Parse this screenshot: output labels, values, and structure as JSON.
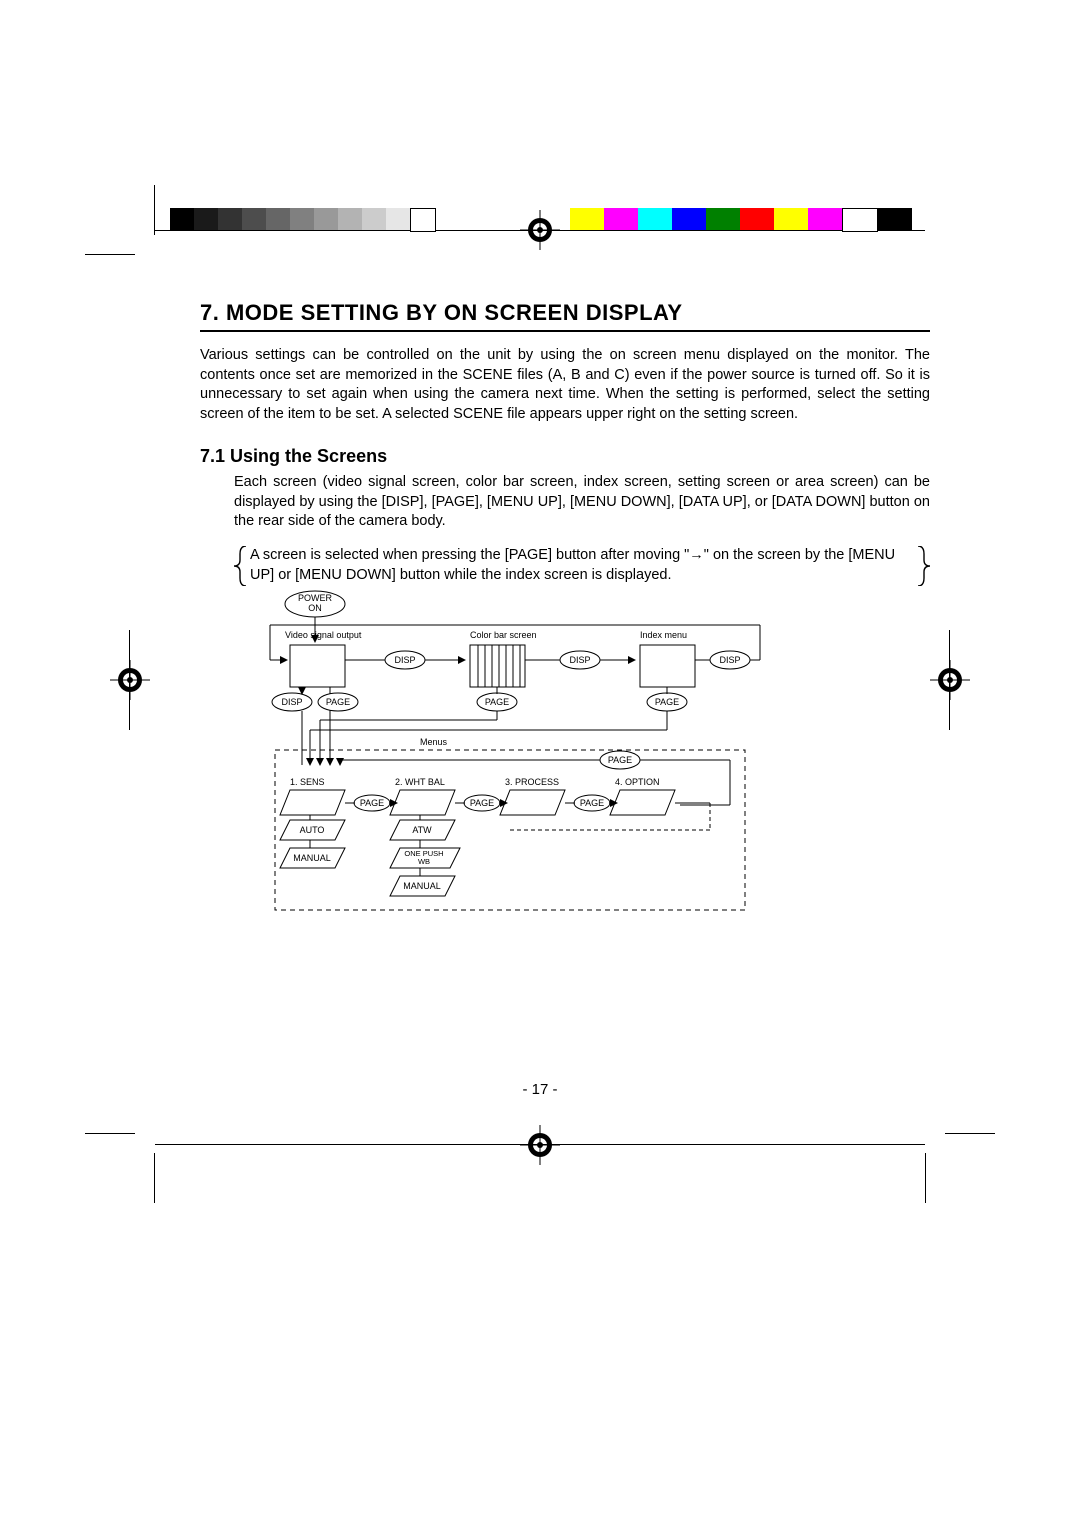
{
  "page_number": "- 17 -",
  "section": {
    "number": "7.",
    "title": "MODE SETTING BY ON SCREEN DISPLAY",
    "body": "Various settings can be controlled on the unit by using the on screen menu displayed on the monitor. The contents once set are memorized in the SCENE files (A, B and C) even if the power source is turned off. So it is unnecessary to set again when using the camera next time. When the setting is performed, select the setting screen of the item to be set. A selected SCENE file appears upper right on the setting screen."
  },
  "subsection": {
    "number": "7.1",
    "title": "Using the Screens",
    "body": "Each screen (video signal screen, color bar screen, index screen, setting screen or area screen) can be displayed by using the [DISP], [PAGE], [MENU UP], [MENU DOWN], [DATA UP], or [DATA DOWN] button on the rear side of the camera body.",
    "note": "A screen is selected when pressing the [PAGE] button after moving \"→\" on the screen by the [MENU UP] or [MENU DOWN] button while the index screen is displayed."
  },
  "diagram": {
    "labels": {
      "power_on": "POWER\nON",
      "video_signal": "Video signal output",
      "color_bar": "Color bar screen",
      "index_menu": "Index menu",
      "menus": "Menus",
      "disp": "DISP",
      "page": "PAGE",
      "sens": "1. SENS",
      "wht_bal": "2. WHT BAL",
      "process": "3. PROCESS",
      "option": "4. OPTION",
      "auto": "AUTO",
      "manual": "MANUAL",
      "atw": "ATW",
      "one_push": "ONE PUSH\nWB"
    },
    "colors": {
      "line": "#000000",
      "fill": "#ffffff"
    }
  },
  "gray_bars": [
    "#000000",
    "#1a1a1a",
    "#333333",
    "#4d4d4d",
    "#666666",
    "#808080",
    "#999999",
    "#b3b3b3",
    "#cccccc",
    "#e6e6e6",
    "#ffffff"
  ],
  "color_bars": [
    "#ffff00",
    "#ff00ff",
    "#00ffff",
    "#0000ff",
    "#008000",
    "#ff0000",
    "#ffff00",
    "#ff00ff",
    "#ffffff",
    "#000000"
  ],
  "registration_mark_color": "#000000"
}
